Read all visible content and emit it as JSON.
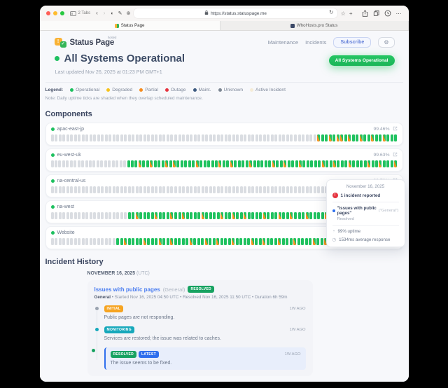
{
  "colors": {
    "operational_green": "#1ec05f",
    "degraded_yellow": "#f6c21c",
    "partial_orange": "#f68b1f",
    "outage_red": "#e5333f",
    "maint_navy": "#3d5a80",
    "unknown_gray": "#7d8793",
    "active_incident_cream": "#f5ecd7",
    "link_blue": "#4a7df0",
    "badge_resolved": "#17a261",
    "badge_initial": "#f6a421",
    "badge_monitoring": "#16a8bb",
    "badge_latest": "#2f6fed",
    "tick_gray": "#dadde2"
  },
  "browser": {
    "tabs_count_label": "2 Tabs",
    "address": "https://status.statuspage.me",
    "tabs": [
      {
        "title": "Status Page"
      },
      {
        "title": "WhoHosts.pro Status"
      }
    ]
  },
  "site": {
    "brand": "Status Page",
    "brand_badge": "hosted",
    "nav": {
      "maintenance": "Maintenance",
      "incidents": "Incidents",
      "subscribe": "Subscribe"
    }
  },
  "status": {
    "title": "All Systems Operational",
    "last_updated": "Last updated Nov 26, 2025 at 01:23 PM GMT+1",
    "badge": "All Systems Operational"
  },
  "legend": {
    "label": "Legend:",
    "items": [
      {
        "label": "Operational"
      },
      {
        "label": "Degraded"
      },
      {
        "label": "Partial"
      },
      {
        "label": "Outage"
      },
      {
        "label": "Maint."
      },
      {
        "label": "Unknown"
      },
      {
        "label": "Active Incident"
      }
    ],
    "note": "Note: Daily uptime ticks are shaded when they overlap scheduled maintenance."
  },
  "components": {
    "title": "Components",
    "rows": [
      {
        "name": "apac-east-jp",
        "uptime": "99.46%",
        "gray_days": 69,
        "pattern": "moomommomoomoomoomooo"
      },
      {
        "name": "eu-west-uk",
        "uptime": "99.63%",
        "gray_days": 20,
        "pattern": "ooomoomooomomooooomooooomoomoooomooooomoomooomooooomoomooomoooomoomooom"
      },
      {
        "name": "na-central-us",
        "uptime": "99.72%",
        "gray_days": 84,
        "pattern": "oooooo"
      },
      {
        "name": "na-west",
        "uptime": "",
        "gray_days": 20,
        "pattern": "oomoooomooomoomoooomoooomoomoomoooomooomoomooomoooomoomoooomoooomoomoo"
      },
      {
        "name": "Website",
        "uptime": "",
        "gray_days": 17,
        "pattern": "oomoooomooomoomoooomooomoomooomoooomoomooomooomoooomoomooomoommhmmooomooo"
      }
    ]
  },
  "tooltip": {
    "date": "November 16, 2025",
    "alert_glyph": "!",
    "incidents": "1 incident reported",
    "incident_title": "\"Issues with public pages\"",
    "incident_scope": "(\"General\")",
    "incident_state": "Resolved",
    "uptime": "99% uptime",
    "response": "1534ms average response"
  },
  "incident_history": {
    "title": "Incident History",
    "date_label": "NOVEMBER 16, 2025",
    "date_suffix": "(UTC)",
    "incident": {
      "title": "Issues with public pages",
      "scope": "(General)",
      "status": "RESOLVED",
      "meta_component": "General",
      "meta_rest": " • Started Nov 16, 2025 04:50 UTC • Resolved Nov 16, 2025 11:50 UTC • Duration 6h 59m",
      "updates": [
        {
          "badge": "INITIAL",
          "time": "1W AGO",
          "text": "Public pages are not responding."
        },
        {
          "badge": "MONITORING",
          "time": "1W AGO",
          "text": "Services are restored; the issue was related to caches."
        },
        {
          "badge": "RESOLVED",
          "badge2": "LATEST",
          "time": "1W AGO",
          "text": "The issue seems to be fixed."
        }
      ]
    }
  }
}
